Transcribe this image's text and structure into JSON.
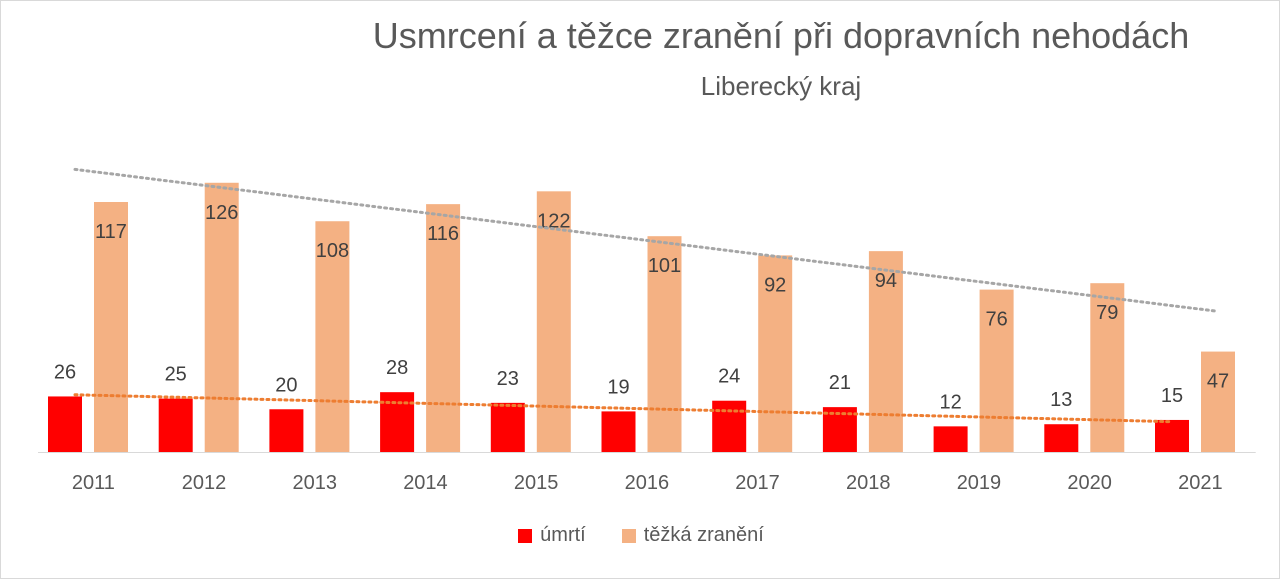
{
  "chart_data": {
    "type": "bar",
    "title": "Usmrcení a těžce zranění při dopravních nehodách",
    "subtitle": "Liberecký kraj",
    "categories": [
      "2011",
      "2012",
      "2013",
      "2014",
      "2015",
      "2016",
      "2017",
      "2018",
      "2019",
      "2020",
      "2021"
    ],
    "series": [
      {
        "name": "úmrtí",
        "color": "#ff0000",
        "values": [
          26,
          25,
          20,
          28,
          23,
          19,
          24,
          21,
          12,
          13,
          15
        ]
      },
      {
        "name": "těžká zranění",
        "color": "#f4b183",
        "values": [
          117,
          126,
          108,
          116,
          122,
          101,
          92,
          94,
          76,
          79,
          47
        ]
      }
    ],
    "trendlines": [
      {
        "series": "úmrtí",
        "type": "linear",
        "style": "dotted",
        "color": "#ed7d31"
      },
      {
        "series": "těžká zranění",
        "type": "linear",
        "style": "dotted",
        "color": "#a6a6a6"
      }
    ],
    "ylim": [
      0,
      130
    ],
    "grid": false,
    "data_labels": true,
    "legend": "bottom"
  }
}
